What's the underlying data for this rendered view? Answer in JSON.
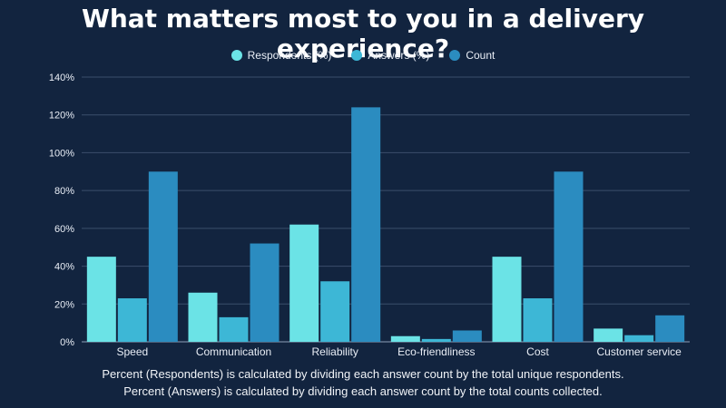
{
  "title": "What matters most to you in a delivery experience?",
  "colors": {
    "background": "#12243f",
    "respondents": "#6be3e6",
    "answers": "#3db7d6",
    "count": "#2b8cc0",
    "grid": "#3b4e6b"
  },
  "legend": [
    {
      "label": "Respondents (%)",
      "color": "#6be3e6"
    },
    {
      "label": "Answers (%)",
      "color": "#3db7d6"
    },
    {
      "label": "Count",
      "color": "#2b8cc0"
    }
  ],
  "notes": {
    "line1": "Percent (Respondents) is calculated by dividing each answer count by the total unique respondents.",
    "line2": "Percent (Answers) is calculated by dividing each answer count by the total counts collected."
  },
  "chart_data": {
    "type": "bar",
    "title": "What matters most to you in a delivery experience?",
    "categories": [
      "Speed",
      "Communication",
      "Reliability",
      "Eco-friendliness",
      "Cost",
      "Customer service"
    ],
    "series": [
      {
        "name": "Respondents (%)",
        "values": [
          45,
          26,
          62,
          3,
          45,
          7
        ]
      },
      {
        "name": "Answers (%)",
        "values": [
          23,
          13,
          32,
          1.5,
          23,
          3.5
        ]
      },
      {
        "name": "Count",
        "values": [
          90,
          52,
          124,
          6,
          90,
          14
        ]
      }
    ],
    "ylim": [
      0,
      140
    ],
    "yticks": [
      "0%",
      "20%",
      "40%",
      "60%",
      "80%",
      "100%",
      "120%",
      "140%"
    ],
    "grid": true,
    "legend_position": "top-center"
  }
}
